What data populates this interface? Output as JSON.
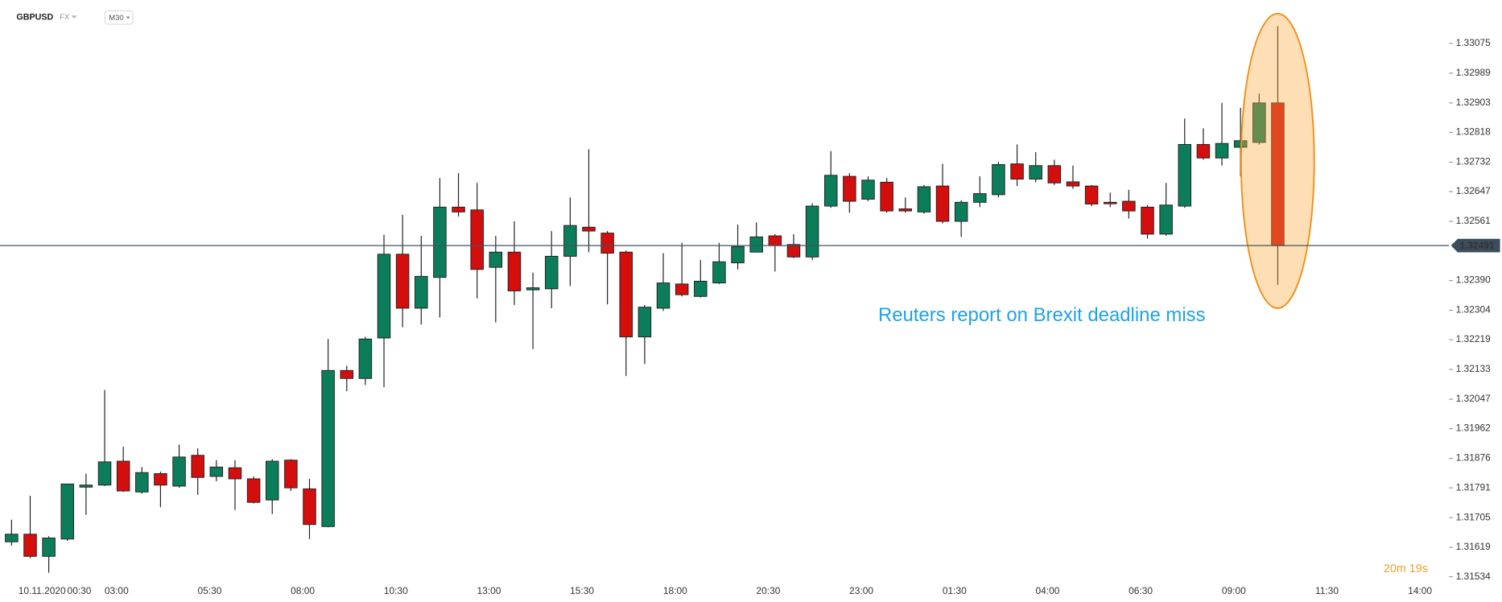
{
  "chart_data": {
    "type": "candlestick",
    "symbol": "GBPUSD",
    "market": "FX",
    "timeframe": "M30",
    "annotation": "Reuters report on Brexit deadline miss",
    "countdown": "20m 19s",
    "up_color": "#0b7d5a",
    "down_color": "#d40d0d",
    "current_price": 1.32491,
    "ylim": [
      1.3152,
      1.332
    ],
    "yticks": [
      1.33075,
      1.32989,
      1.32903,
      1.32818,
      1.32732,
      1.32647,
      1.32561,
      {
        "value": 1.3239,
        "label": "1.32390"
      },
      1.32304,
      1.32219,
      1.32133,
      1.32047,
      1.31962,
      1.31876,
      1.31791,
      1.31705,
      1.31619,
      1.31534
    ],
    "categories": [
      null,
      null,
      "10.11.2020",
      null,
      "00:30",
      null,
      "03:00",
      null,
      null,
      null,
      null,
      "05:30",
      null,
      null,
      null,
      null,
      "08:00",
      null,
      null,
      null,
      null,
      "10:30",
      null,
      null,
      null,
      null,
      "13:00",
      null,
      null,
      null,
      null,
      "15:30",
      null,
      null,
      null,
      null,
      "18:00",
      null,
      null,
      null,
      null,
      "20:30",
      null,
      null,
      null,
      null,
      "23:00",
      null,
      null,
      null,
      null,
      "01:30",
      null,
      null,
      null,
      null,
      "04:00",
      null,
      null,
      null,
      null,
      "06:30",
      null,
      null,
      null,
      null,
      "09:00",
      null,
      null,
      null,
      null,
      "11:30",
      null,
      null,
      null,
      null,
      "14:00"
    ],
    "open": [
      1.31635,
      1.31657,
      1.31593,
      1.31643,
      1.31793,
      1.31799,
      1.31868,
      1.31779,
      1.31832,
      1.31796,
      1.31885,
      1.31824,
      1.31849,
      1.31817,
      1.31756,
      1.31871,
      1.31788,
      1.31679,
      1.3213,
      1.32107,
      1.32224,
      1.32466,
      1.3231,
      1.32399,
      1.32602,
      1.32594,
      1.32428,
      1.32472,
      1.32363,
      1.32366,
      1.3246,
      1.32544,
      1.32527,
      1.32472,
      1.32227,
      1.3231,
      1.3238,
      1.32344,
      1.32383,
      1.32441,
      1.32472,
      1.32519,
      1.32494,
      1.32458,
      1.32605,
      1.32691,
      1.32625,
      1.32674,
      1.32597,
      1.32588,
      1.32663,
      1.32561,
      1.32616,
      1.32638,
      1.32727,
      1.32683,
      1.32722,
      1.32675,
      1.32663,
      1.32616,
      1.32619,
      1.32602,
      1.32524,
      1.32605,
      1.32783,
      1.32744,
      1.32775,
      1.32789,
      1.32903,
      null,
      null,
      null,
      null,
      null,
      null,
      null,
      null
    ],
    "high": [
      1.31699,
      1.31768,
      1.31651,
      1.31802,
      1.31832,
      1.32074,
      1.3191,
      1.31851,
      1.31838,
      1.31916,
      1.31905,
      1.31871,
      1.31871,
      1.31824,
      1.31874,
      1.31874,
      1.31817,
      1.32221,
      1.32144,
      1.32227,
      1.32522,
      1.3258,
      1.32519,
      1.32686,
      1.327,
      1.32672,
      1.32519,
      1.32561,
      1.32413,
      1.32533,
      1.3263,
      1.32769,
      1.32533,
      1.32477,
      1.32319,
      1.32469,
      1.32499,
      1.32449,
      1.32499,
      1.32552,
      1.32558,
      1.32524,
      1.32524,
      1.32613,
      1.32764,
      1.327,
      1.32691,
      1.32686,
      1.3263,
      1.32666,
      1.32727,
      1.32622,
      1.32691,
      1.32733,
      1.32783,
      1.32761,
      1.32739,
      1.32722,
      1.32666,
      1.32644,
      1.32652,
      1.32608,
      1.32672,
      1.32858,
      1.3283,
      1.32903,
      1.32889,
      1.3293,
      1.33125,
      null,
      null,
      null,
      null,
      null,
      null,
      null,
      null
    ],
    "low": [
      1.31624,
      1.31588,
      1.31546,
      1.31638,
      1.31713,
      1.31796,
      1.31779,
      1.31774,
      1.31735,
      1.31791,
      1.31771,
      1.3181,
      1.31727,
      1.31746,
      1.31715,
      1.31782,
      1.31643,
      1.31677,
      1.3207,
      1.32088,
      1.32082,
      1.32255,
      1.32263,
      1.32283,
      1.32575,
      1.32338,
      1.32269,
      1.32319,
      1.32192,
      1.3231,
      1.32374,
      1.32472,
      1.32321,
      1.32114,
      1.32149,
      1.32302,
      1.32344,
      1.32341,
      1.3238,
      1.32422,
      1.32477,
      1.32416,
      1.32455,
      1.32449,
      1.326,
      1.32586,
      1.32619,
      1.32586,
      1.32586,
      1.32583,
      1.32555,
      1.32516,
      1.32602,
      1.3263,
      1.32663,
      1.32674,
      1.32666,
      1.32655,
      1.32605,
      1.32602,
      1.32569,
      1.32511,
      1.32519,
      1.326,
      1.32739,
      1.32722,
      1.32691,
      1.32783,
      1.32377,
      null,
      null,
      null,
      null,
      null,
      null,
      null,
      null
    ],
    "close": [
      1.31657,
      1.31593,
      1.31646,
      1.31802,
      1.31799,
      1.31866,
      1.31782,
      1.31835,
      1.31799,
      1.3188,
      1.31821,
      1.31851,
      1.31817,
      1.31749,
      1.31868,
      1.31791,
      1.31685,
      1.3213,
      1.32107,
      1.32221,
      1.32466,
      1.3231,
      1.32402,
      1.32602,
      1.32588,
      1.32422,
      1.32472,
      1.3236,
      1.32369,
      1.3246,
      1.32549,
      1.32533,
      1.32469,
      1.32227,
      1.32313,
      1.32383,
      1.32349,
      1.32388,
      1.32444,
      1.32488,
      1.32516,
      1.32491,
      1.32458,
      1.32605,
      1.32694,
      1.32619,
      1.3268,
      1.32591,
      1.32591,
      1.32661,
      1.32561,
      1.32616,
      1.32641,
      1.32725,
      1.32683,
      1.32722,
      1.32672,
      1.32663,
      1.32611,
      1.32613,
      1.32591,
      1.32524,
      1.32608,
      1.32783,
      1.32744,
      1.32786,
      1.32794,
      1.32903,
      1.32491,
      null,
      null,
      null,
      null,
      null,
      null,
      null,
      null
    ]
  }
}
